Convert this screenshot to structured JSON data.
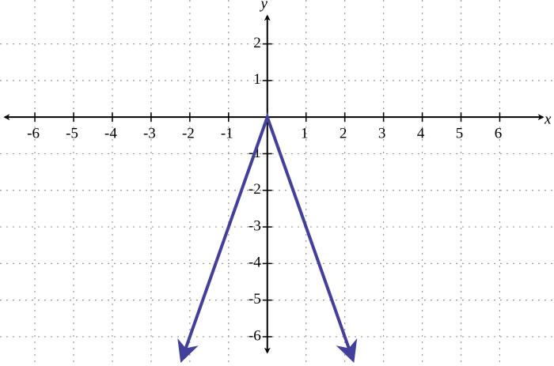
{
  "chart_data": {
    "type": "line",
    "x_label": "x",
    "y_label": "y",
    "x": [
      -2.2,
      0,
      2.2
    ],
    "series": [
      {
        "color": "#43409b",
        "values": [
          -6.6,
          0,
          -6.6
        ]
      }
    ],
    "xlim": [
      -6.9,
      7.4
    ],
    "ylim": [
      -6.8,
      3.2
    ],
    "xticks": [
      -6,
      -5,
      -4,
      -3,
      -2,
      -1,
      1,
      2,
      3,
      4,
      5,
      6
    ],
    "yticks": [
      -6,
      -5,
      -4,
      -3,
      -2,
      -1,
      1,
      2
    ],
    "grid": true
  }
}
